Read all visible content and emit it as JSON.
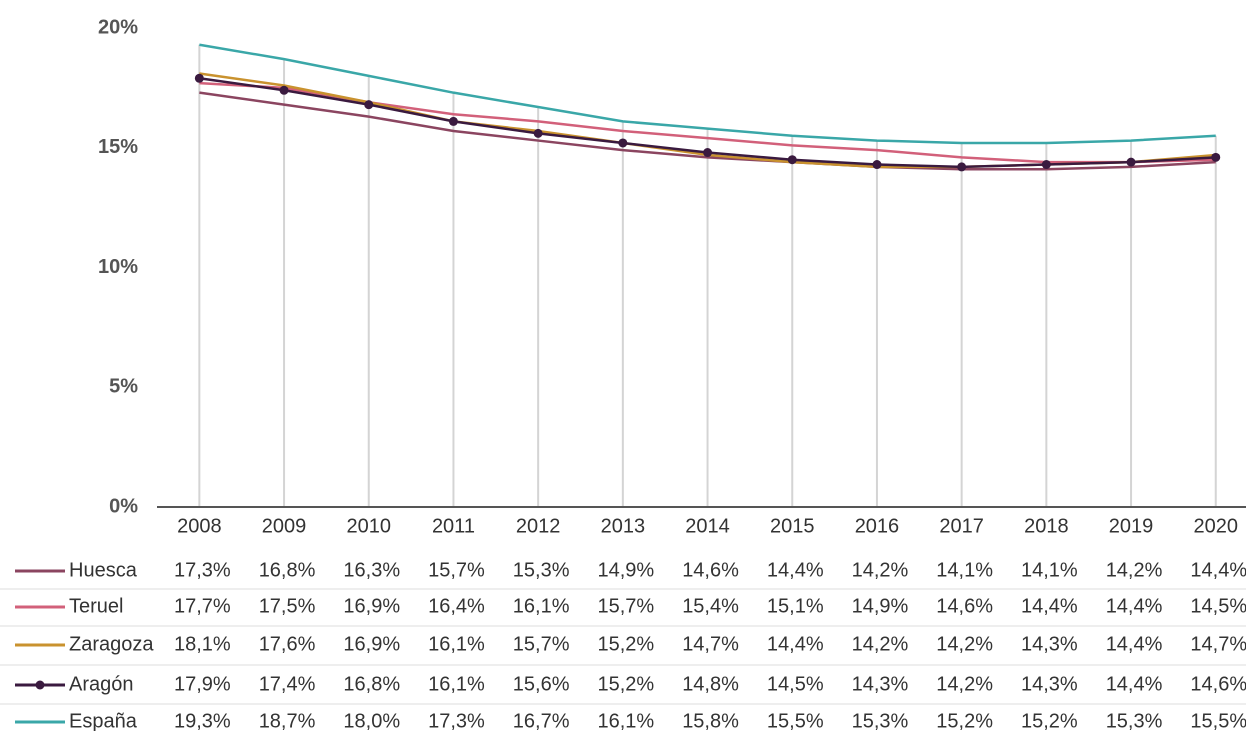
{
  "chart_data": {
    "type": "line",
    "categories": [
      "2008",
      "2009",
      "2010",
      "2011",
      "2012",
      "2013",
      "2014",
      "2015",
      "2016",
      "2017",
      "2018",
      "2019",
      "2020"
    ],
    "series": [
      {
        "name": "Huesca",
        "color": "#8b4560",
        "markers": false,
        "values": [
          17.3,
          16.8,
          16.3,
          15.7,
          15.3,
          14.9,
          14.6,
          14.4,
          14.2,
          14.1,
          14.1,
          14.2,
          14.4
        ],
        "value_labels": [
          "17,3%",
          "16,8%",
          "16,3%",
          "15,7%",
          "15,3%",
          "14,9%",
          "14,6%",
          "14,4%",
          "14,2%",
          "14,1%",
          "14,1%",
          "14,2%",
          "14,4%"
        ]
      },
      {
        "name": "Teruel",
        "color": "#d2607a",
        "markers": false,
        "values": [
          17.7,
          17.5,
          16.9,
          16.4,
          16.1,
          15.7,
          15.4,
          15.1,
          14.9,
          14.6,
          14.4,
          14.4,
          14.5
        ],
        "value_labels": [
          "17,7%",
          "17,5%",
          "16,9%",
          "16,4%",
          "16,1%",
          "15,7%",
          "15,4%",
          "15,1%",
          "14,9%",
          "14,6%",
          "14,4%",
          "14,4%",
          "14,5%"
        ]
      },
      {
        "name": "Zaragoza",
        "color": "#c9922e",
        "markers": false,
        "values": [
          18.1,
          17.6,
          16.9,
          16.1,
          15.7,
          15.2,
          14.7,
          14.4,
          14.2,
          14.2,
          14.3,
          14.4,
          14.7
        ],
        "value_labels": [
          "18,1%",
          "17,6%",
          "16,9%",
          "16,1%",
          "15,7%",
          "15,2%",
          "14,7%",
          "14,4%",
          "14,2%",
          "14,2%",
          "14,3%",
          "14,4%",
          "14,7%"
        ]
      },
      {
        "name": "Aragón",
        "color": "#3a1a3f",
        "markers": true,
        "values": [
          17.9,
          17.4,
          16.8,
          16.1,
          15.6,
          15.2,
          14.8,
          14.5,
          14.3,
          14.2,
          14.3,
          14.4,
          14.6
        ],
        "value_labels": [
          "17,9%",
          "17,4%",
          "16,8%",
          "16,1%",
          "15,6%",
          "15,2%",
          "14,8%",
          "14,5%",
          "14,3%",
          "14,2%",
          "14,3%",
          "14,4%",
          "14,6%"
        ]
      },
      {
        "name": "España",
        "color": "#3aa7a8",
        "markers": false,
        "values": [
          19.3,
          18.7,
          18.0,
          17.3,
          16.7,
          16.1,
          15.8,
          15.5,
          15.3,
          15.2,
          15.2,
          15.3,
          15.5
        ],
        "value_labels": [
          "19,3%",
          "18,7%",
          "18,0%",
          "17,3%",
          "16,7%",
          "16,1%",
          "15,8%",
          "15,5%",
          "15,3%",
          "15,2%",
          "15,2%",
          "15,3%",
          "15,5%"
        ]
      }
    ],
    "ylim": [
      0,
      20
    ],
    "yticks": [
      {
        "value": 0,
        "label": "0%"
      },
      {
        "value": 5,
        "label": "5%"
      },
      {
        "value": 10,
        "label": "10%"
      },
      {
        "value": 15,
        "label": "15%"
      },
      {
        "value": 20,
        "label": "20%"
      }
    ],
    "drop_lines": true
  }
}
